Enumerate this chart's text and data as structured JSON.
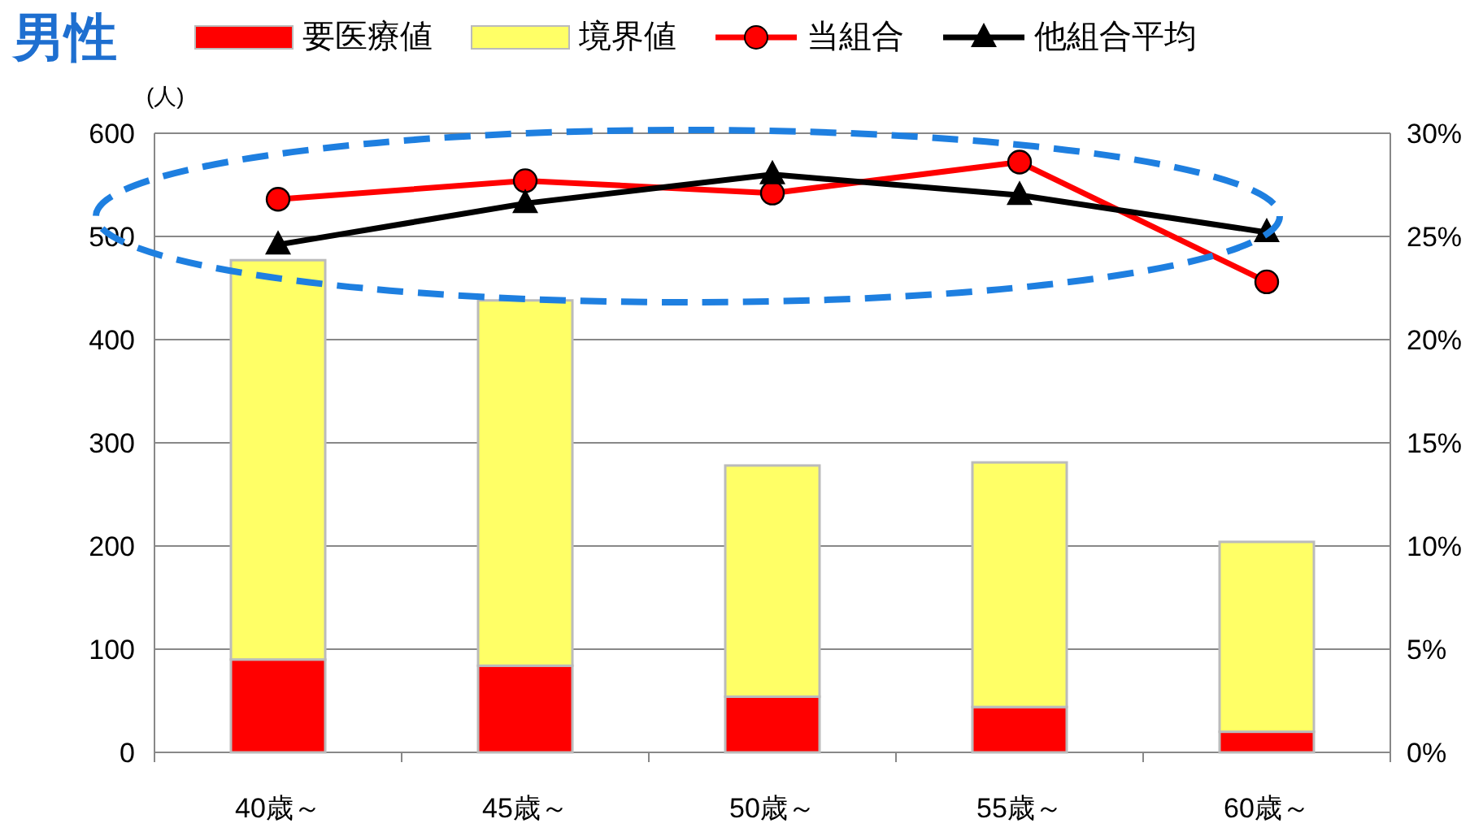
{
  "chart_data": {
    "type": "bar",
    "title": "男性",
    "ylabel": "(人)",
    "stacked": true,
    "categories": [
      "40歳～",
      "45歳～",
      "50歳～",
      "55歳～",
      "60歳～"
    ],
    "series": [
      {
        "name": "要医療値",
        "color": "#ff0000",
        "values": [
          90,
          84,
          54,
          44,
          20
        ]
      },
      {
        "name": "境界値",
        "color": "#ffff66",
        "values": [
          387,
          354,
          224,
          237,
          184
        ]
      },
      {
        "name": "当組合",
        "type": "line",
        "axis": "y2",
        "color": "#ff0000",
        "marker": "circle",
        "values": [
          26.8,
          27.7,
          27.1,
          28.6,
          22.8
        ]
      },
      {
        "name": "他組合平均",
        "type": "line",
        "axis": "y2",
        "color": "#000000",
        "marker": "triangle",
        "values": [
          24.6,
          26.6,
          28.0,
          27.0,
          25.2
        ]
      }
    ],
    "ylim": [
      0,
      600
    ],
    "yticks": [
      0,
      100,
      200,
      300,
      400,
      500,
      600
    ],
    "y2lim": [
      0,
      30
    ],
    "y2ticks": [
      {
        "value": 0,
        "label": "0%"
      },
      {
        "value": 5,
        "label": "5%"
      },
      {
        "value": 10,
        "label": "10%"
      },
      {
        "value": 15,
        "label": "15%"
      },
      {
        "value": 20,
        "label": "20%"
      },
      {
        "value": 25,
        "label": "25%"
      },
      {
        "value": 30,
        "label": "30%"
      }
    ],
    "grid": "y",
    "legend": "top"
  }
}
